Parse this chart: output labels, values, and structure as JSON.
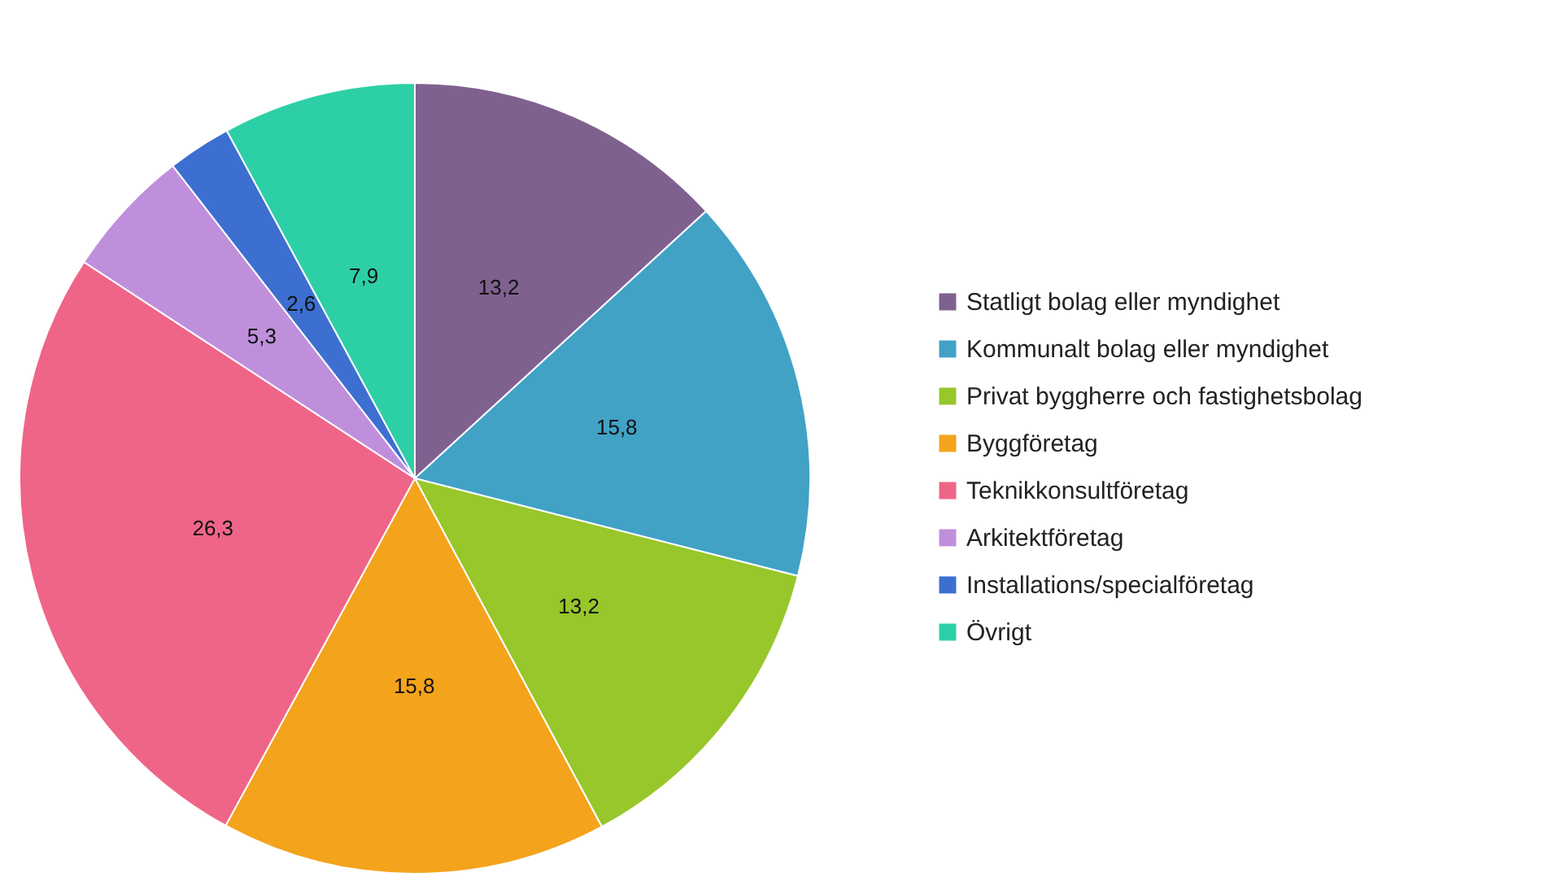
{
  "chart_data": {
    "type": "pie",
    "categories": [
      "Statligt bolag eller myndighet",
      "Kommunalt bolag eller myndighet",
      "Privat byggherre och fastighetsbolag",
      "Byggföretag",
      "Teknikkonsultföretag",
      "Arkitektföretag",
      "Installations/specialföretag",
      "Övrigt"
    ],
    "values": [
      13.2,
      15.8,
      13.2,
      15.8,
      26.3,
      5.3,
      2.6,
      7.9
    ],
    "value_labels": [
      "13,2",
      "15,8",
      "13,2",
      "15,8",
      "26,3",
      "5,3",
      "2,6",
      "7,9"
    ],
    "colors": [
      "#7f6190",
      "#41a2c6",
      "#97c72a",
      "#f4a31c",
      "#ef6587",
      "#bf8fdc",
      "#3c6fd0",
      "#2dcfa6"
    ],
    "legend": "right"
  }
}
